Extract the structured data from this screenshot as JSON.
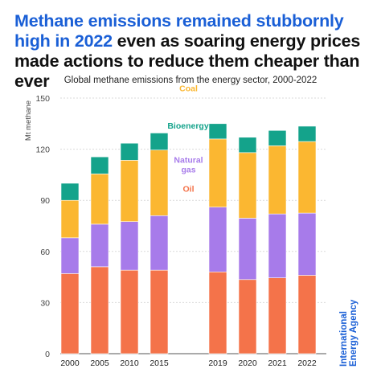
{
  "headline": {
    "highlight": "Methane emissions remained stubbornly high in 2022",
    "rest": " even as soaring energy prices made actions to reduce them cheaper than ever"
  },
  "subtitle": "Global methane emissions from the energy sector, 2000-2022",
  "brand": {
    "line1": "International",
    "line2": "Energy Agency"
  },
  "chart_data": {
    "type": "bar",
    "stacked": true,
    "title": "Global methane emissions from the energy sector, 2000-2022",
    "ylabel": "Mt methane",
    "ylim": [
      0,
      150
    ],
    "yticks": [
      0,
      30,
      60,
      90,
      120,
      150
    ],
    "categories": [
      "2000",
      "2005",
      "2010",
      "2015",
      "2019",
      "2020",
      "2021",
      "2022"
    ],
    "series": [
      {
        "name": "Oil",
        "color": "#f4734a",
        "values": [
          47,
          51,
          49,
          49,
          48,
          43.5,
          44.5,
          46
        ]
      },
      {
        "name": "Natural gas",
        "color": "#a77bea",
        "values": [
          21,
          25,
          28.5,
          32,
          38,
          36,
          37.5,
          36.5
        ]
      },
      {
        "name": "Coal",
        "color": "#fbb731",
        "values": [
          22,
          29.5,
          36,
          38.5,
          40,
          38.5,
          40,
          42
        ]
      },
      {
        "name": "Bioenergy",
        "color": "#14a38b",
        "values": [
          10,
          10,
          10,
          10,
          9,
          9,
          9,
          9
        ]
      }
    ],
    "series_label_colors": [
      "#f4734a",
      "#a77bea",
      "#fbb731",
      "#14a38b"
    ],
    "grid": true,
    "legend": "inline labels"
  }
}
